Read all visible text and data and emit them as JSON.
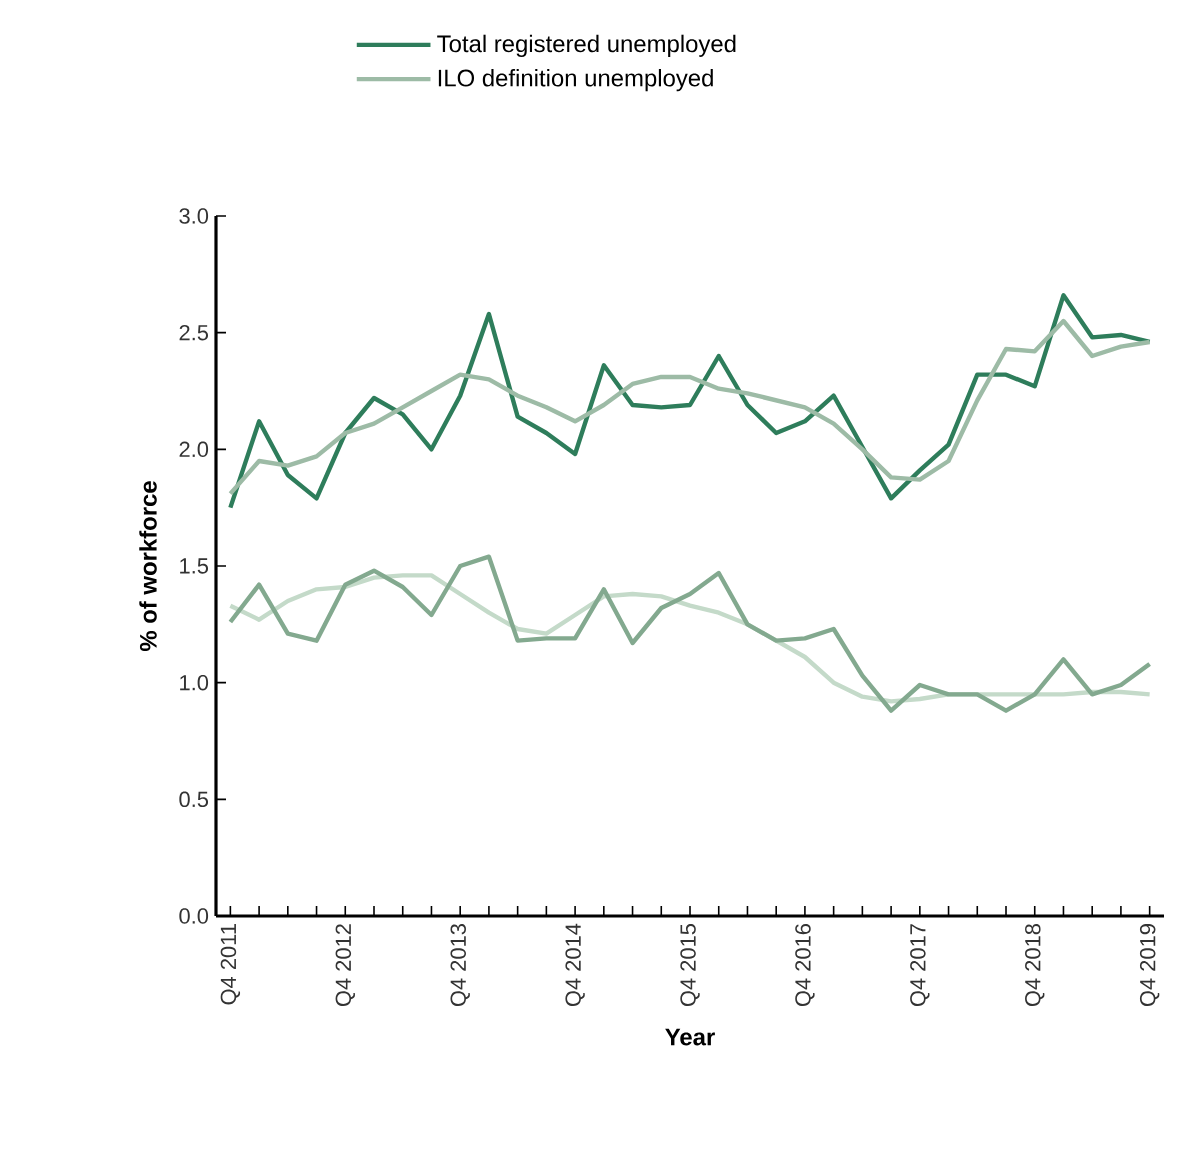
{
  "chart_data": {
    "type": "line",
    "xlabel": "Year",
    "ylabel": "% of workforce",
    "legend": "top",
    "categories": [
      "Q4 2011",
      null,
      null,
      null,
      "Q4 2012",
      null,
      null,
      null,
      "Q4 2013",
      null,
      null,
      null,
      "Q4 2014",
      null,
      null,
      null,
      "Q4 2015",
      null,
      null,
      null,
      "Q4 2016",
      null,
      null,
      null,
      "Q4 2017",
      null,
      null,
      null,
      "Q4 2018",
      null,
      null,
      null,
      "Q4 2019"
    ],
    "ylim": [
      0,
      3
    ],
    "yticks": [
      {
        "value": 0,
        "label": "0.0"
      },
      {
        "value": 0.5,
        "label": "0.5"
      },
      {
        "value": 1,
        "label": "1.0"
      },
      {
        "value": 1.5,
        "label": "1.5"
      },
      {
        "value": 2,
        "label": "2.0"
      },
      {
        "value": 2.5,
        "label": "2.5"
      },
      {
        "value": 3,
        "label": "3.0"
      }
    ],
    "series": [
      {
        "name": "Total registered unemployed",
        "color": "#2e7d5b",
        "values": [
          1.75,
          2.12,
          1.89,
          1.79,
          2.07,
          2.22,
          2.15,
          2.0,
          2.23,
          2.58,
          2.14,
          2.07,
          1.98,
          2.36,
          2.19,
          2.18,
          2.19,
          2.4,
          2.19,
          2.07,
          2.12,
          2.23,
          2.01,
          1.79,
          1.91,
          2.02,
          2.32,
          2.32,
          2.27,
          2.66,
          2.48,
          2.49,
          2.46
        ]
      },
      {
        "name": "ILO definition unemployed",
        "color": "#9dbba6",
        "values": [
          1.81,
          1.95,
          1.93,
          1.97,
          2.07,
          2.11,
          2.18,
          2.25,
          2.32,
          2.3,
          2.23,
          2.18,
          2.12,
          2.19,
          2.28,
          2.31,
          2.31,
          2.26,
          2.24,
          2.21,
          2.18,
          2.11,
          2.0,
          1.88,
          1.87,
          1.95,
          2.21,
          2.43,
          2.42,
          2.55,
          2.4,
          2.44,
          2.46
        ]
      },
      {
        "color": "#c4dac9",
        "values": [
          1.33,
          1.27,
          1.35,
          1.4,
          1.41,
          1.45,
          1.46,
          1.46,
          1.38,
          1.3,
          1.23,
          1.21,
          1.29,
          1.37,
          1.38,
          1.37,
          1.33,
          1.3,
          1.25,
          1.18,
          1.11,
          1.0,
          0.94,
          0.92,
          0.93,
          0.95,
          0.95,
          0.95,
          0.95,
          0.95,
          0.96,
          0.96,
          0.95
        ]
      },
      {
        "color": "#83a98f",
        "values": [
          1.26,
          1.42,
          1.21,
          1.18,
          1.42,
          1.48,
          1.41,
          1.29,
          1.5,
          1.54,
          1.18,
          1.19,
          1.19,
          1.4,
          1.17,
          1.32,
          1.38,
          1.47,
          1.25,
          1.18,
          1.19,
          1.23,
          1.03,
          0.88,
          0.99,
          0.95,
          0.95,
          0.88,
          0.95,
          1.1,
          0.95,
          0.99,
          1.08
        ]
      }
    ]
  }
}
